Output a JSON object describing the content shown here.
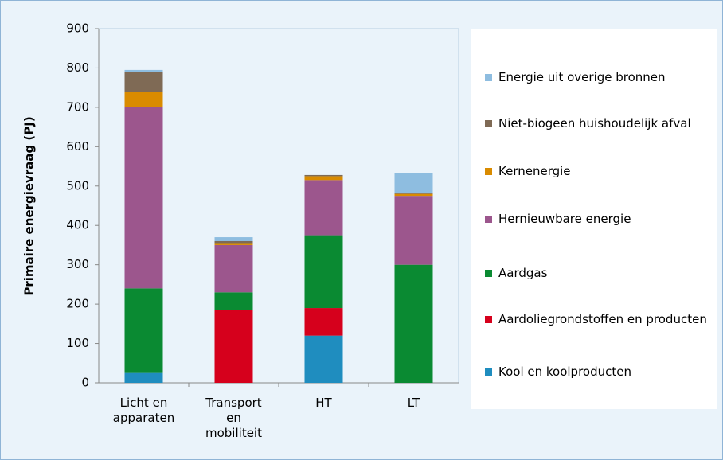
{
  "chart_data": {
    "type": "stacked_bar",
    "y_label": "Primaire energievraag (PJ)",
    "categories": [
      "Licht en apparaten",
      "Transport en mobiliteit",
      "HT",
      "LT"
    ],
    "series": [
      {
        "name": "Kool en koolproducten",
        "color": "#1f8dbf",
        "values": [
          25,
          0,
          120,
          0
        ]
      },
      {
        "name": "Aardoliegrondstoffen en producten",
        "color": "#d6001c",
        "values": [
          0,
          185,
          70,
          0
        ]
      },
      {
        "name": "Aardgas",
        "color": "#0a8a32",
        "values": [
          215,
          45,
          185,
          300
        ]
      },
      {
        "name": "Hernieuwbare energie",
        "color": "#9c568d",
        "values": [
          460,
          120,
          140,
          175
        ]
      },
      {
        "name": "Kernenergie",
        "color": "#d98b00",
        "values": [
          40,
          5,
          10,
          5
        ]
      },
      {
        "name": "Niet-biogeen huishoudelijk afval",
        "color": "#7f6a55",
        "values": [
          50,
          5,
          3,
          3
        ]
      },
      {
        "name": "Energie uit overige bronnen",
        "color": "#8ebde0",
        "values": [
          5,
          10,
          0,
          50
        ]
      }
    ],
    "ylim": [
      0,
      900
    ],
    "yticks": [
      0,
      100,
      200,
      300,
      400,
      500,
      600,
      700,
      800,
      900
    ],
    "grid": false
  }
}
